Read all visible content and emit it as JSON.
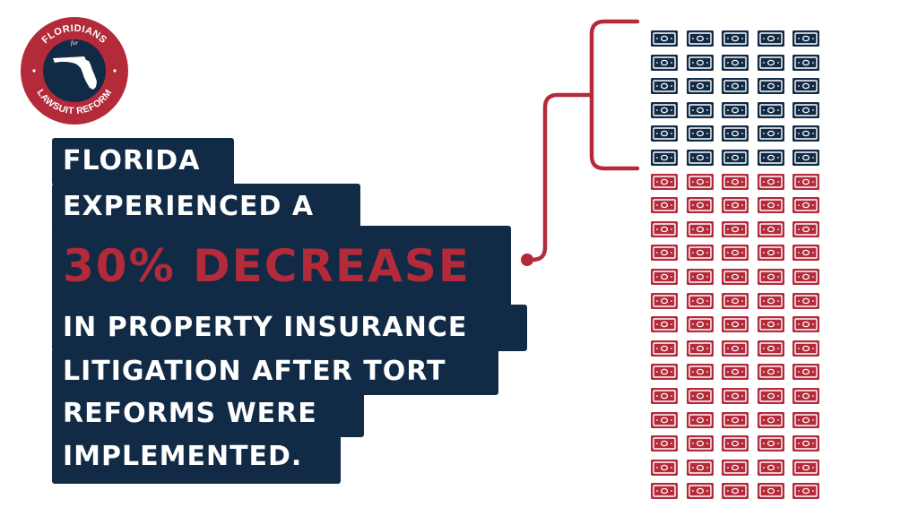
{
  "logo": {
    "text_top": "FLORIDIANS",
    "text_for": "for",
    "text_bottom": "LAWSUIT REFORM"
  },
  "headline": {
    "lines": [
      "FLORIDA",
      "EXPERIENCED A",
      "30% DECREASE",
      "IN PROPERTY INSURANCE",
      "LITIGATION AFTER TORT",
      "REFORMS WERE",
      "IMPLEMENTED."
    ],
    "highlight_index": 2
  },
  "bill_grid": {
    "columns": 5,
    "rows": 20,
    "navy_rows": 6,
    "icon": "dollar-bill-icon"
  },
  "colors": {
    "navy": "#112a46",
    "red": "#b32a3a",
    "background": "#ffffff"
  }
}
